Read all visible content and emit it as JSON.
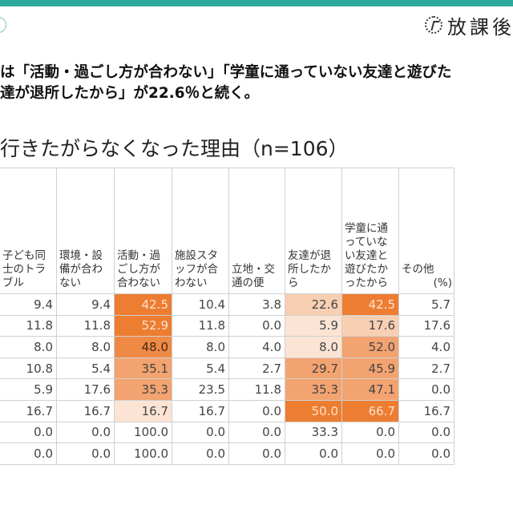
{
  "header": {
    "logo_text": "放課後"
  },
  "lead": {
    "line1": "は「活動・過ごし方が合わない」「学童に通っていない友達と遊びた",
    "line2": "達が退所したから」が22.6％と続く。"
  },
  "title": "行きたがらなくなった理由（n=106）",
  "table": {
    "columns": [
      "子ども同士のトラブル",
      "環境・設備が合わない",
      "活動・過ごし方が合わない",
      "施設スタッフが合わない",
      "立地・交通の便",
      "友達が退所したから",
      "学童に通っていない友達と遊びたかったから",
      "その他"
    ],
    "unit": "(%)",
    "rows": [
      [
        "9.4",
        "9.4",
        "42.5",
        "10.4",
        "3.8",
        "22.6",
        "42.5",
        "5.7"
      ],
      [
        "11.8",
        "11.8",
        "52.9",
        "11.8",
        "0.0",
        "5.9",
        "17.6",
        "17.6"
      ],
      [
        "8.0",
        "8.0",
        "48.0",
        "8.0",
        "4.0",
        "8.0",
        "52.0",
        "4.0"
      ],
      [
        "10.8",
        "5.4",
        "35.1",
        "5.4",
        "2.7",
        "29.7",
        "45.9",
        "2.7"
      ],
      [
        "5.9",
        "17.6",
        "35.3",
        "23.5",
        "11.8",
        "35.3",
        "47.1",
        "0.0"
      ],
      [
        "16.7",
        "16.7",
        "16.7",
        "16.7",
        "0.0",
        "50.0",
        "66.7",
        "16.7"
      ],
      [
        "0.0",
        "0.0",
        "100.0",
        "0.0",
        "0.0",
        "33.3",
        "0.0",
        "0.0"
      ],
      [
        "0.0",
        "0.0",
        "100.0",
        "0.0",
        "0.0",
        "0.0",
        "0.0",
        "0.0"
      ]
    ],
    "highlight_colors": {
      "dark": "#ed7d31",
      "medium": "#f3a370",
      "light": "#f8cfb2",
      "pale": "#fce4d4"
    }
  }
}
